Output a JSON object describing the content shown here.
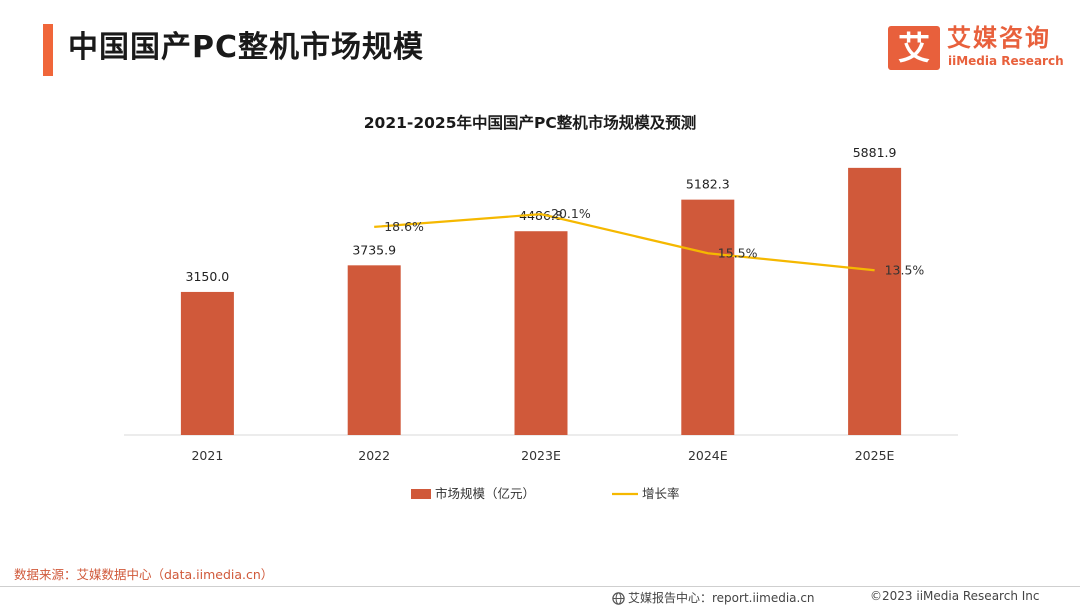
{
  "header": {
    "title": "中国国产PC整机市场规模",
    "accent_color": "#F0663A"
  },
  "logo": {
    "icon_char": "艾",
    "name_cn": "艾媒咨询",
    "name_en": "iiMedia Research",
    "color": "#E8603C"
  },
  "chart_data": {
    "type": "bar",
    "title": "2021-2025年中国国产PC整机市场规模及预测",
    "categories": [
      "2021",
      "2022",
      "2023E",
      "2024E",
      "2025E"
    ],
    "series": [
      {
        "name": "市场规模（亿元）",
        "kind": "bar",
        "color": "#D0593A",
        "values": [
          3150.0,
          3735.9,
          4486.8,
          5182.3,
          5881.9
        ],
        "labels": [
          "3150.0",
          "3735.9",
          "4486.8",
          "5182.3",
          "5881.9"
        ]
      },
      {
        "name": "增长率",
        "kind": "line",
        "color": "#F5B800",
        "values": [
          null,
          18.6,
          20.1,
          15.5,
          13.5
        ],
        "labels": [
          "",
          "18.6%",
          "20.1%",
          "15.5%",
          "13.5%"
        ]
      }
    ],
    "xlabel": "",
    "ylabel": "",
    "ylim": [
      0,
      7200
    ],
    "y2lim": [
      0,
      30
    ],
    "grid": false,
    "legend": "bottom"
  },
  "footer": {
    "source": "数据来源：艾媒数据中心（data.iimedia.cn）",
    "source_color": "#D0593A",
    "report_center": "艾媒报告中心：report.iimedia.cn",
    "copyright": "©2023  iiMedia Research  Inc"
  }
}
